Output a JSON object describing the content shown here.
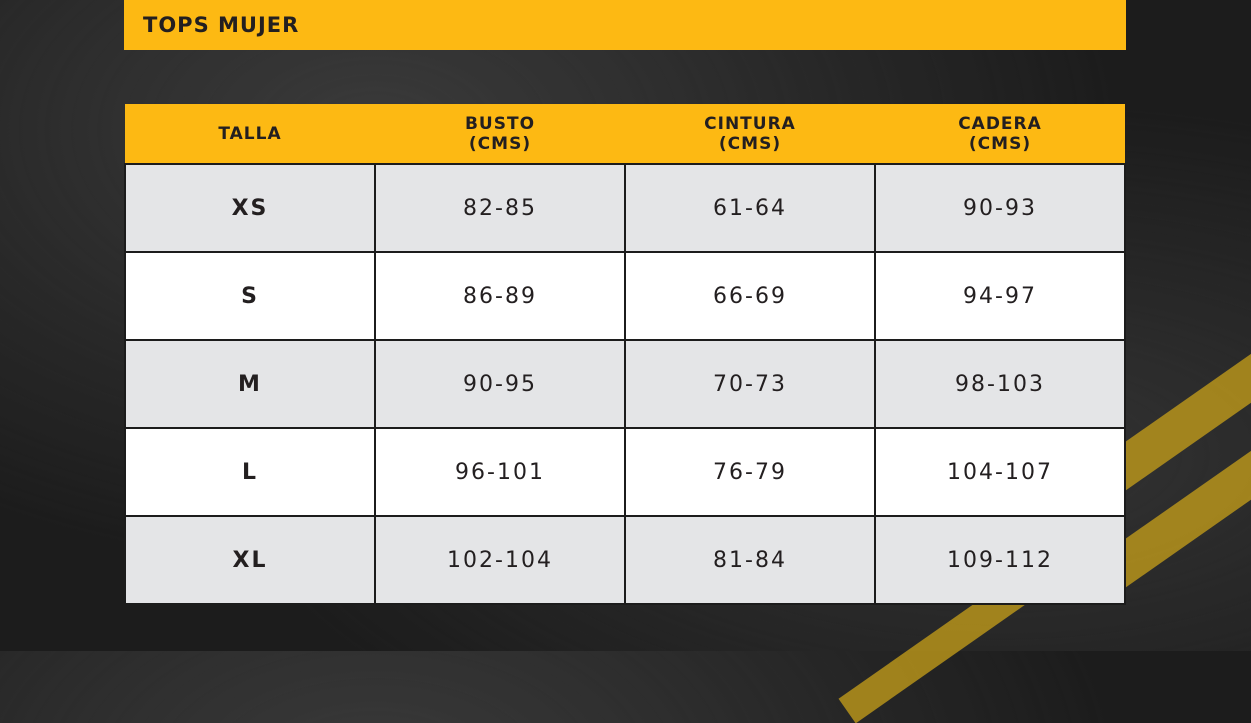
{
  "title": "TOPS MUJER",
  "colors": {
    "accent": "#fdb913",
    "row_alt": "#e4e5e7",
    "row": "#ffffff",
    "background": "#1c1c1c"
  },
  "table": {
    "headers": [
      {
        "line1": "TALLA",
        "line2": ""
      },
      {
        "line1": "BUSTO",
        "line2": "(CMS)"
      },
      {
        "line1": "CINTURA",
        "line2": "(CMS)"
      },
      {
        "line1": "CADERA",
        "line2": "(CMS)"
      }
    ],
    "rows": [
      [
        "XS",
        "82-85",
        "61-64",
        "90-93"
      ],
      [
        "S",
        "86-89",
        "66-69",
        "94-97"
      ],
      [
        "M",
        "90-95",
        "70-73",
        "98-103"
      ],
      [
        "L",
        "96-101",
        "76-79",
        "104-107"
      ],
      [
        "XL",
        "102-104",
        "81-84",
        "109-112"
      ]
    ]
  }
}
